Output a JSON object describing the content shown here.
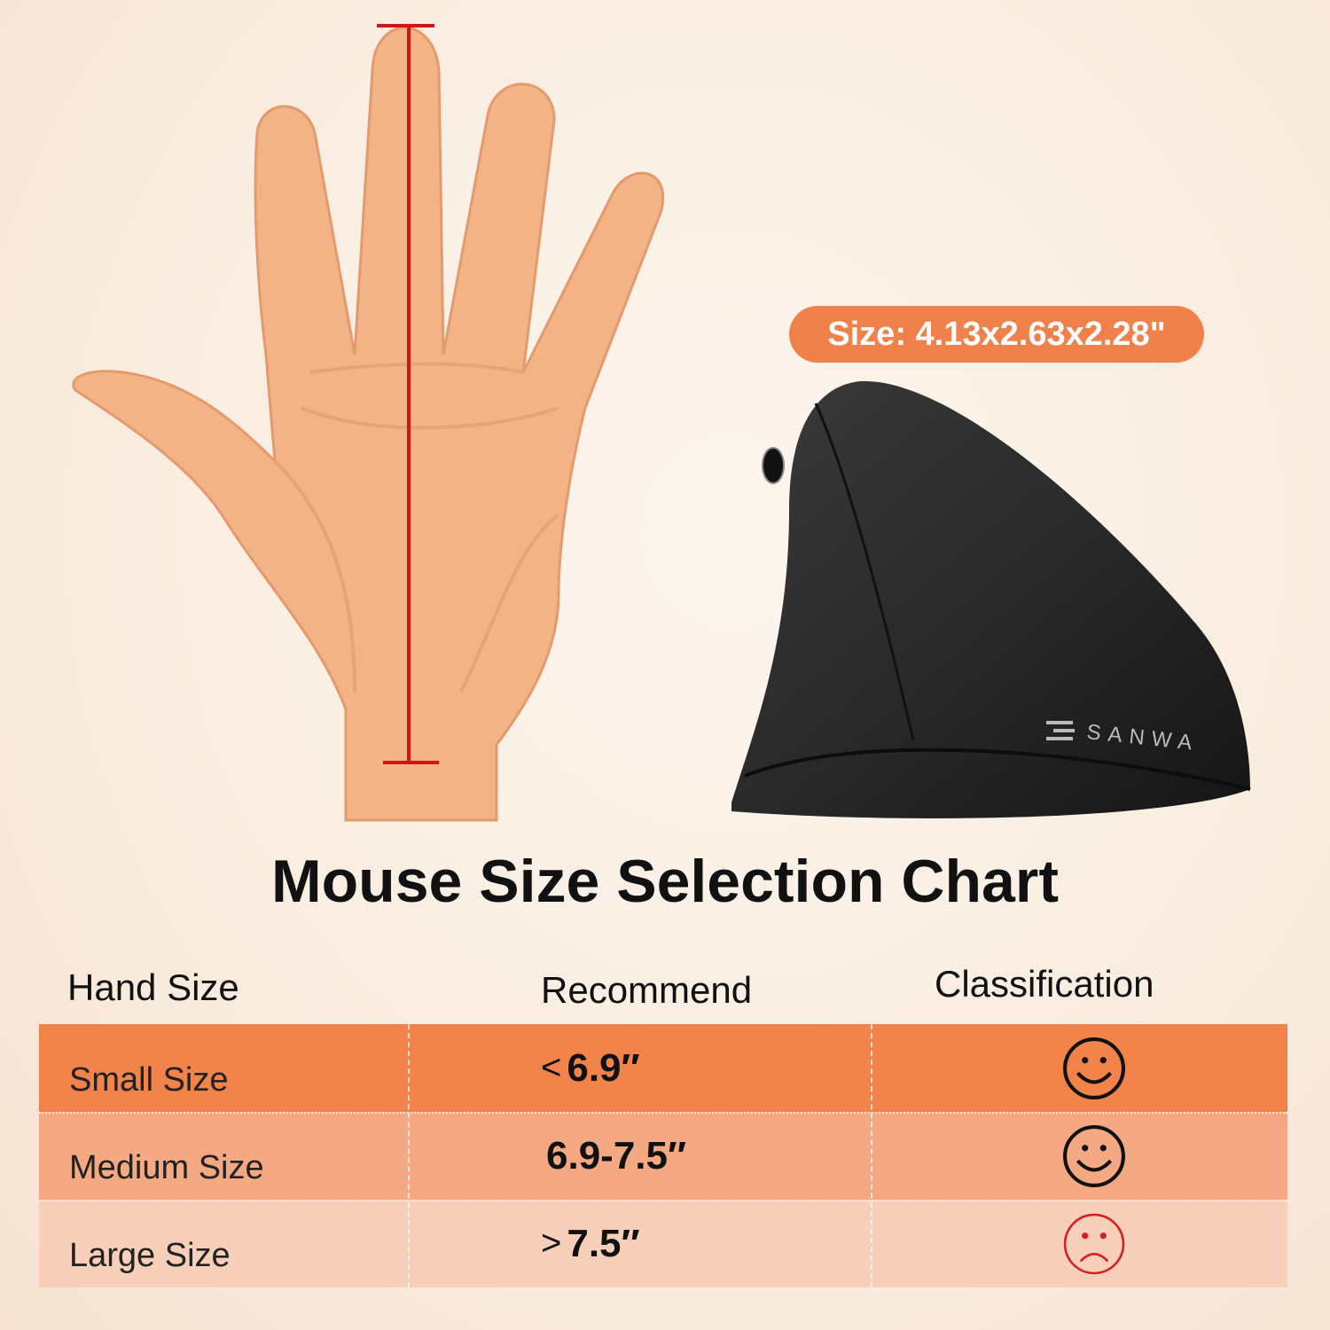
{
  "product_badge": {
    "text": "Size: 4.13x2.63x2.28\""
  },
  "brand_logo": "SANWA",
  "title": "Mouse Size Selection Chart",
  "table": {
    "headers": [
      "Hand Size",
      "Recommend",
      "Classification"
    ],
    "rows": [
      {
        "hand_size": "Small Size",
        "symbol": "<",
        "value": "6.9″",
        "classification": "smiley-face-icon",
        "row_color": "#f2834b",
        "icon_color": "#111111"
      },
      {
        "hand_size": "Medium Size",
        "symbol": "",
        "value": "6.9-7.5″",
        "classification": "smiley-face-icon",
        "row_color": "#f5a983",
        "icon_color": "#111111"
      },
      {
        "hand_size": "Large Size",
        "symbol": ">",
        "value": "7.5″",
        "classification": "sad-face-icon",
        "row_color": "#f8cfb8",
        "icon_color": "#d42020"
      }
    ]
  },
  "colors": {
    "accent": "#f0814a",
    "measure_line": "#d41414",
    "skin": "#f2b487"
  }
}
